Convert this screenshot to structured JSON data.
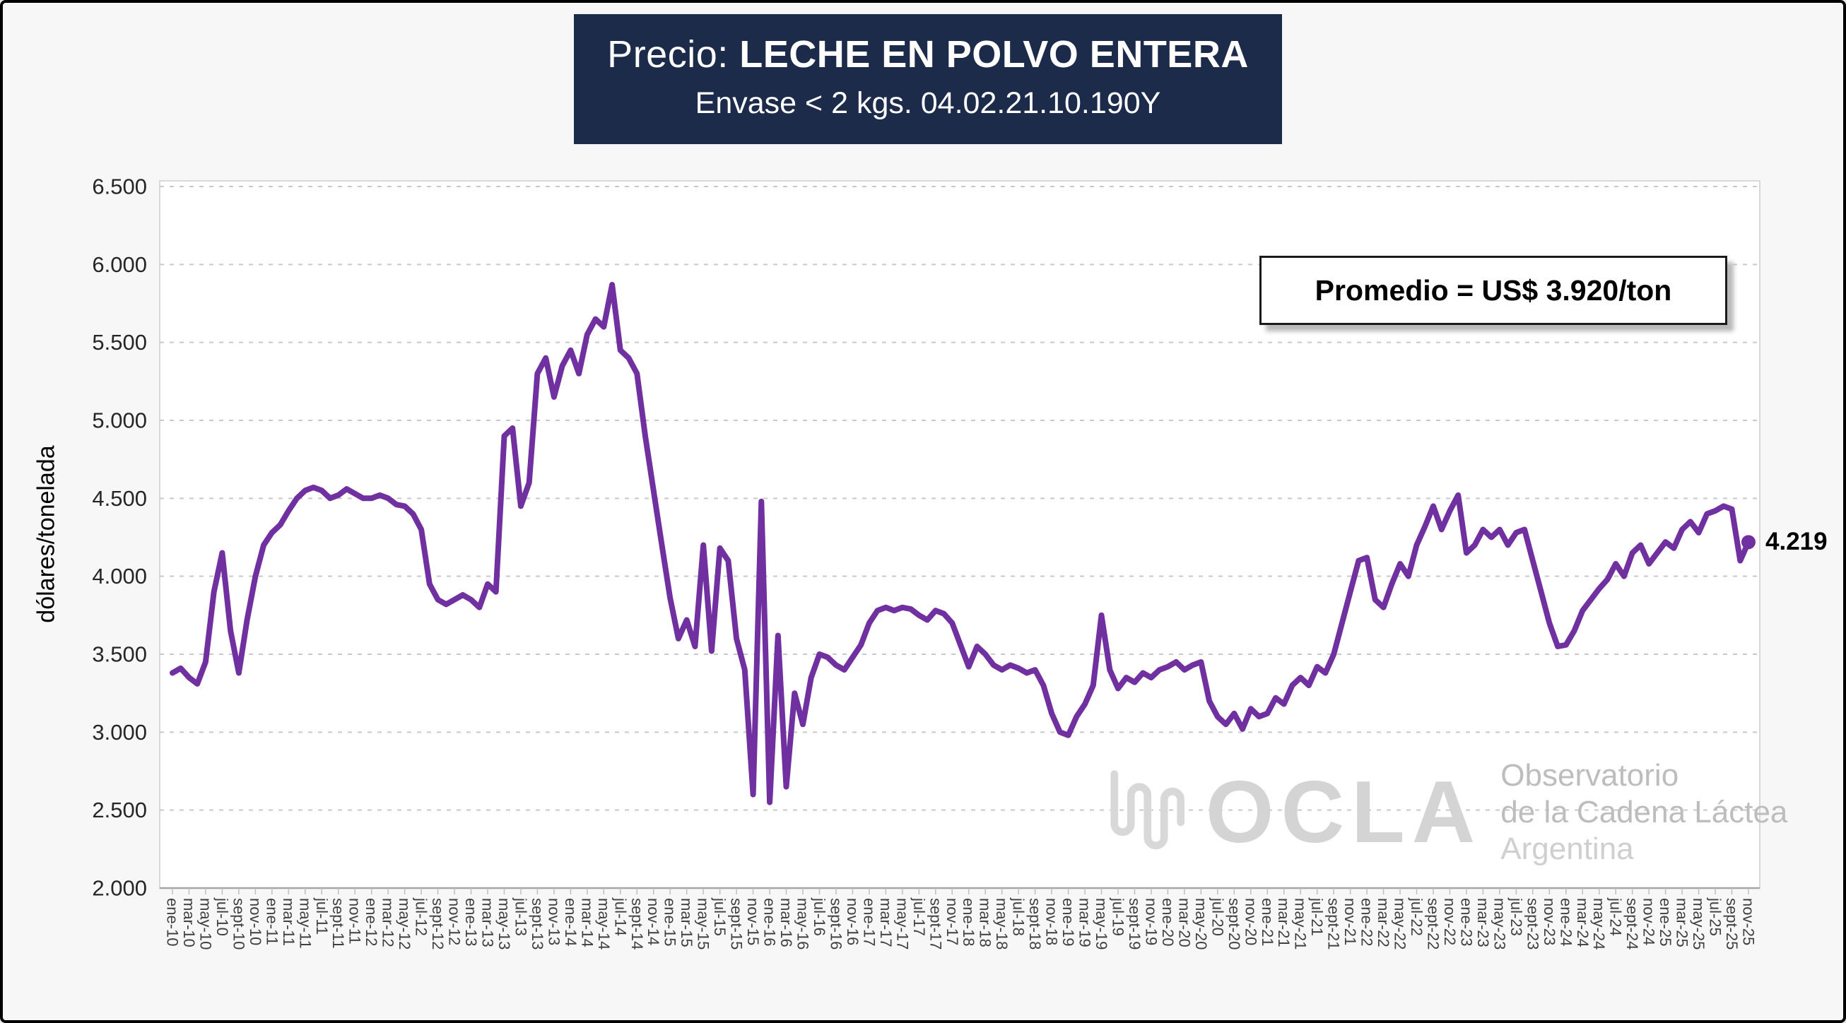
{
  "title": {
    "prefix": "Precio: ",
    "main": "LECHE EN POLVO ENTERA",
    "subtitle": "Envase < 2 kgs. 04.02.21.10.190Y"
  },
  "annotation": "Promedio = US$ 3.920/ton",
  "last_value_label": "4.219",
  "watermark": {
    "brand": "OCLA",
    "line1": "Observatorio",
    "line2": "de la Cadena Láctea",
    "line3": "Argentina"
  },
  "colors": {
    "line": "#7030A0",
    "title_bg": "#1D2B4A",
    "grid": "#c9c9c9",
    "axis": "#a6a6a6"
  },
  "chart_data": {
    "type": "line",
    "title": "Precio: LECHE EN POLVO ENTERA — Envase < 2 kgs. 04.02.21.10.190Y",
    "xlabel": "",
    "ylabel": "dólares/tonelada",
    "ylim": [
      2000,
      6500
    ],
    "grid": "dashed-horizontal",
    "legend_position": "none",
    "average_annotation": "Promedio = US$ 3.920/ton",
    "last_point_label": "4.219",
    "yticks": [
      {
        "value": 2000,
        "label": "2.000"
      },
      {
        "value": 2500,
        "label": "2.500"
      },
      {
        "value": 3000,
        "label": "3.000"
      },
      {
        "value": 3500,
        "label": "3.500"
      },
      {
        "value": 4000,
        "label": "4.000"
      },
      {
        "value": 4500,
        "label": "4.500"
      },
      {
        "value": 5000,
        "label": "5.000"
      },
      {
        "value": 5500,
        "label": "5.500"
      },
      {
        "value": 6000,
        "label": "6.000"
      },
      {
        "value": 6500,
        "label": "6.500"
      }
    ],
    "x_label_every_n_points": 2,
    "x_labels": [
      "ene-10",
      "mar-10",
      "may-10",
      "jul-10",
      "sept-10",
      "nov-10",
      "ene-11",
      "mar-11",
      "may-11",
      "jul-11",
      "sept-11",
      "nov-11",
      "ene-12",
      "mar-12",
      "may-12",
      "jul-12",
      "sept-12",
      "nov-12",
      "ene-13",
      "mar-13",
      "may-13",
      "jul-13",
      "sept-13",
      "nov-13",
      "ene-14",
      "mar-14",
      "may-14",
      "jul-14",
      "sept-14",
      "nov-14",
      "ene-15",
      "mar-15",
      "may-15",
      "jul-15",
      "sept-15",
      "nov-15",
      "ene-16",
      "mar-16",
      "may-16",
      "jul-16",
      "sept-16",
      "nov-16",
      "ene-17",
      "mar-17",
      "may-17",
      "jul-17",
      "sept-17",
      "nov-17",
      "ene-18",
      "mar-18",
      "may-18",
      "jul-18",
      "sept-18",
      "nov-18",
      "ene-19",
      "mar-19",
      "may-19",
      "jul-19",
      "sept-19",
      "nov-19",
      "ene-20",
      "mar-20",
      "may-20",
      "jul-20",
      "sept-20",
      "nov-20",
      "ene-21",
      "mar-21",
      "may-21",
      "jul-21",
      "sept-21",
      "nov-21",
      "ene-22",
      "mar-22",
      "may-22",
      "jul-22",
      "sept-22",
      "nov-22",
      "ene-23",
      "mar-23",
      "may-23",
      "jul-23",
      "sept-23",
      "nov-23",
      "ene-24",
      "mar-24",
      "may-24",
      "jul-24",
      "sept-24",
      "nov-24",
      "ene-25",
      "mar-25",
      "may-25",
      "jul-25",
      "sept-25",
      "nov-25"
    ],
    "series": [
      {
        "name": "Precio leche en polvo entera (US$/ton, mensual ene-10 a nov-25)",
        "values": [
          3380,
          3410,
          3350,
          3310,
          3450,
          3900,
          4150,
          3650,
          3380,
          3720,
          4000,
          4200,
          4280,
          4330,
          4420,
          4500,
          4550,
          4570,
          4550,
          4500,
          4520,
          4560,
          4530,
          4500,
          4500,
          4520,
          4500,
          4460,
          4450,
          4400,
          4300,
          3950,
          3850,
          3820,
          3850,
          3880,
          3850,
          3800,
          3950,
          3900,
          4900,
          4950,
          4450,
          4600,
          5300,
          5400,
          5150,
          5350,
          5450,
          5300,
          5550,
          5650,
          5600,
          5870,
          5450,
          5400,
          5300,
          4900,
          4550,
          4200,
          3860,
          3600,
          3720,
          3550,
          4200,
          3520,
          4180,
          4100,
          3600,
          3400,
          2600,
          4480,
          2550,
          3620,
          2650,
          3250,
          3050,
          3350,
          3500,
          3480,
          3430,
          3400,
          3480,
          3560,
          3700,
          3780,
          3800,
          3780,
          3800,
          3790,
          3750,
          3720,
          3780,
          3760,
          3700,
          3560,
          3420,
          3550,
          3500,
          3430,
          3400,
          3430,
          3410,
          3380,
          3400,
          3300,
          3120,
          3000,
          2980,
          3100,
          3180,
          3300,
          3750,
          3400,
          3280,
          3350,
          3320,
          3380,
          3350,
          3400,
          3420,
          3450,
          3400,
          3430,
          3450,
          3200,
          3100,
          3050,
          3120,
          3020,
          3150,
          3100,
          3120,
          3220,
          3180,
          3300,
          3350,
          3300,
          3420,
          3380,
          3500,
          3700,
          3900,
          4100,
          4120,
          3850,
          3800,
          3950,
          4080,
          4000,
          4200,
          4320,
          4450,
          4300,
          4420,
          4520,
          4150,
          4200,
          4300,
          4250,
          4300,
          4200,
          4280,
          4300,
          4100,
          3900,
          3700,
          3550,
          3560,
          3650,
          3780,
          3850,
          3920,
          3980,
          4080,
          4000,
          4150,
          4200,
          4080,
          4150,
          4220,
          4180,
          4300,
          4350,
          4280,
          4400,
          4420,
          4450,
          4430,
          4100,
          4219
        ]
      }
    ]
  }
}
